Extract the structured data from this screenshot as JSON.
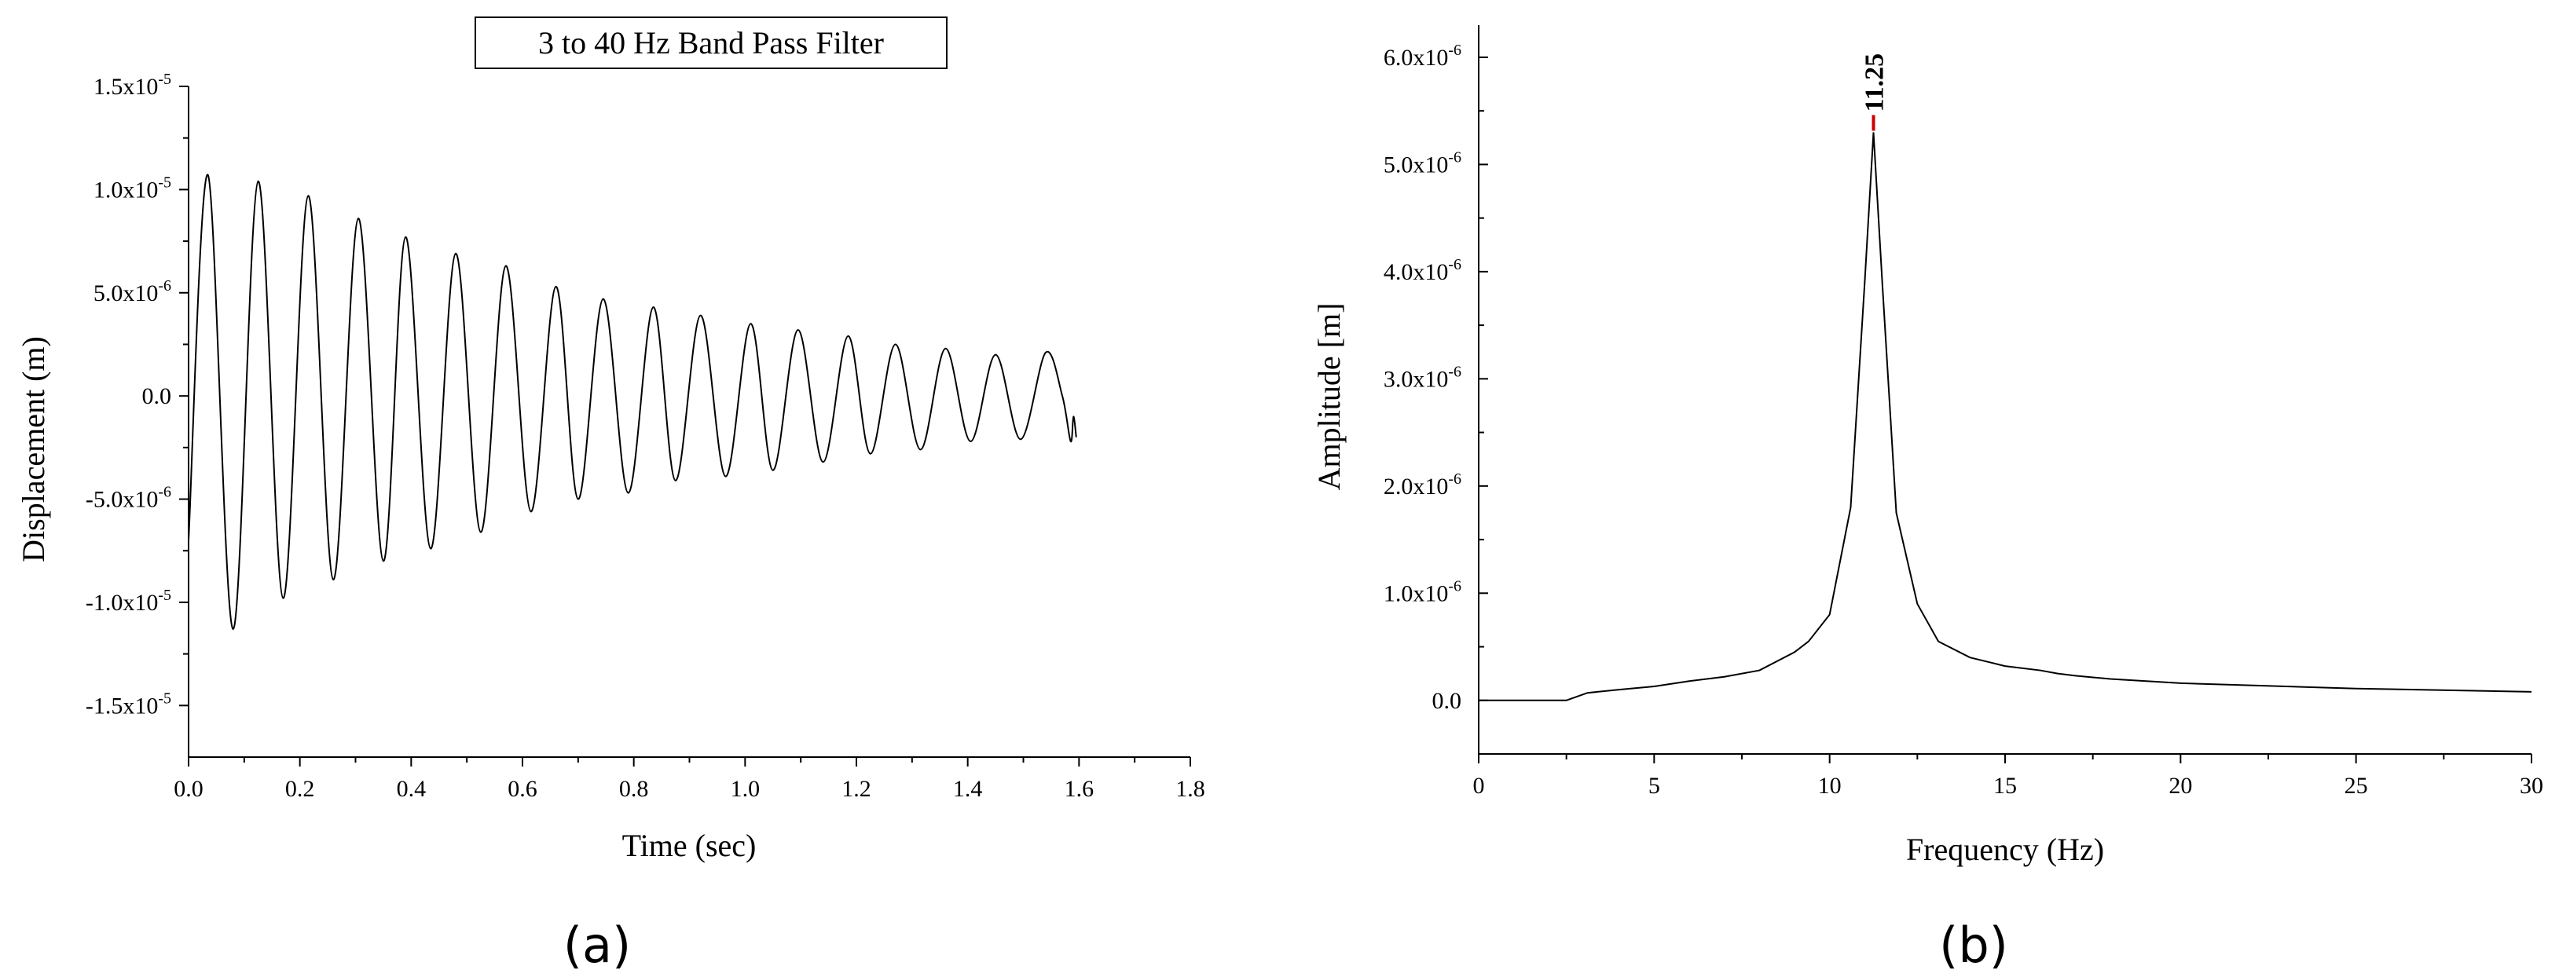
{
  "chart_data": [
    {
      "type": "line",
      "panel_label": "(a)",
      "title": "3 to 40 Hz Band Pass Filter",
      "xlabel": "Time (sec)",
      "ylabel": "Displacement (m)",
      "xlim": [
        0,
        1.8
      ],
      "ylim": [
        -1.75e-05,
        1.5e-05
      ],
      "xticks": [
        "0.0",
        "0.2",
        "0.4",
        "0.6",
        "0.8",
        "1.0",
        "1.2",
        "1.4",
        "1.6",
        "1.8"
      ],
      "xtick_values": [
        0,
        0.2,
        0.4,
        0.6,
        0.8,
        1.0,
        1.2,
        1.4,
        1.6,
        1.8
      ],
      "yticks": [
        {
          "value": 1.5e-05,
          "mant": "1.5x10",
          "exp": "-5"
        },
        {
          "value": 1e-05,
          "mant": "1.0x10",
          "exp": "-5"
        },
        {
          "value": 5e-06,
          "mant": "5.0x10",
          "exp": "-6"
        },
        {
          "value": 0,
          "mant": "0.0",
          "exp": ""
        },
        {
          "value": -5e-06,
          "mant": "-5.0x10",
          "exp": "-6"
        },
        {
          "value": -1e-05,
          "mant": "-1.0x10",
          "exp": "-5"
        },
        {
          "value": -1.5e-05,
          "mant": "-1.5x10",
          "exp": "-5"
        }
      ],
      "series": [
        {
          "x": [
            0.0,
            0.035,
            0.08,
            0.125,
            0.17,
            0.215,
            0.26,
            0.305,
            0.35,
            0.39,
            0.435,
            0.48,
            0.525,
            0.57,
            0.615,
            0.66,
            0.7,
            0.745,
            0.79,
            0.835,
            0.875,
            0.92,
            0.965,
            1.01,
            1.05,
            1.095,
            1.14,
            1.185,
            1.225,
            1.27,
            1.315,
            1.36,
            1.405,
            1.45,
            1.495,
            1.54,
            1.57,
            1.585,
            1.59,
            1.595
          ],
          "y": [
            -7e-06,
            1.07e-05,
            -1.13e-05,
            1.04e-05,
            -9.8e-06,
            9.7e-06,
            -8.9e-06,
            8.6e-06,
            -8e-06,
            7.7e-06,
            -7.4e-06,
            6.9e-06,
            -6.6e-06,
            6.3e-06,
            -5.6e-06,
            5.3e-06,
            -5e-06,
            4.7e-06,
            -4.7e-06,
            4.3e-06,
            -4.1e-06,
            3.9e-06,
            -3.9e-06,
            3.5e-06,
            -3.6e-06,
            3.2e-06,
            -3.2e-06,
            2.9e-06,
            -2.8e-06,
            2.5e-06,
            -2.6e-06,
            2.3e-06,
            -2.2e-06,
            2e-06,
            -2.1e-06,
            2.1e-06,
            0.0,
            -2.2e-06,
            -1e-06,
            -2e-06
          ]
        }
      ],
      "grid": false,
      "color": "#000000"
    },
    {
      "type": "line",
      "panel_label": "(b)",
      "title": "",
      "xlabel": "Frequency (Hz)",
      "ylabel": "Amplitude [m]",
      "xlim": [
        0,
        30
      ],
      "ylim": [
        -5e-07,
        6.3e-06
      ],
      "xticks": [
        "0",
        "5",
        "10",
        "15",
        "20",
        "25",
        "30"
      ],
      "xtick_values": [
        0,
        5,
        10,
        15,
        20,
        25,
        30
      ],
      "yticks": [
        {
          "value": 6e-06,
          "mant": "6.0x10",
          "exp": "-6"
        },
        {
          "value": 5e-06,
          "mant": "5.0x10",
          "exp": "-6"
        },
        {
          "value": 4e-06,
          "mant": "4.0x10",
          "exp": "-6"
        },
        {
          "value": 3e-06,
          "mant": "3.0x10",
          "exp": "-6"
        },
        {
          "value": 2e-06,
          "mant": "2.0x10",
          "exp": "-6"
        },
        {
          "value": 1e-06,
          "mant": "1.0x10",
          "exp": "-6"
        },
        {
          "value": 0,
          "mant": "0.0",
          "exp": ""
        }
      ],
      "series": [
        {
          "x": [
            0,
            2.5,
            3.1,
            4.0,
            5.0,
            6.0,
            7.0,
            8.0,
            9.0,
            9.4,
            10.0,
            10.6,
            11.0,
            11.25,
            11.5,
            11.9,
            12.5,
            13.1,
            14.0,
            15.0,
            16.0,
            16.5,
            17.0,
            18.0,
            20.0,
            25.0,
            30.0
          ],
          "y": [
            0,
            0,
            7e-08,
            1e-07,
            1.3e-07,
            1.8e-07,
            2.2e-07,
            2.8e-07,
            4.5e-07,
            5.5e-07,
            8e-07,
            1.8e-06,
            3.9e-06,
            5.3e-06,
            3.9e-06,
            1.75e-06,
            9e-07,
            5.5e-07,
            4e-07,
            3.2e-07,
            2.8e-07,
            2.5e-07,
            2.3e-07,
            2e-07,
            1.6e-07,
            1.1e-07,
            8e-08
          ]
        }
      ],
      "peak": {
        "x": 11.25,
        "y": 5.3e-06,
        "label": "11.25",
        "color": "#cc0000"
      },
      "grid": false,
      "color": "#000000"
    }
  ]
}
